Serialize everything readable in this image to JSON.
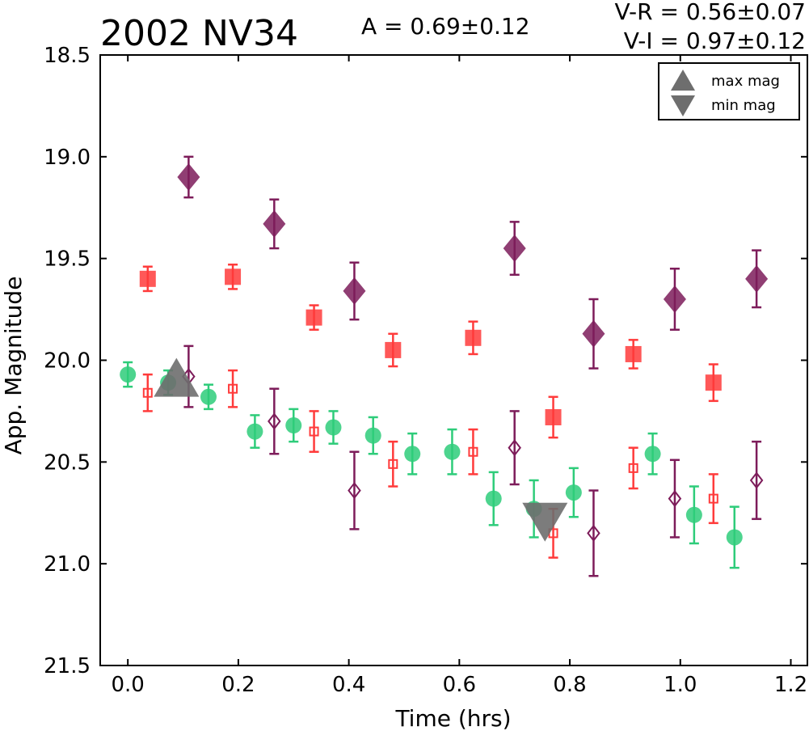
{
  "chart_data": {
    "type": "scatter",
    "title": "2002 NV34",
    "amplitude_label": "A  = 0.69±0.12",
    "color_labels": [
      "V-R = 0.56±0.07",
      "V-I  = 0.97±0.12"
    ],
    "xlabel": "Time (hrs)",
    "ylabel": "App. Magnitude",
    "xlim": [
      -0.05,
      1.23
    ],
    "ylim": [
      21.5,
      18.5
    ],
    "y_inverted": true,
    "xticks": [
      "0.0",
      "0.2",
      "0.4",
      "0.6",
      "0.8",
      "1.0",
      "1.2"
    ],
    "yticks": [
      "18.5",
      "19.0",
      "19.5",
      "20.0",
      "20.5",
      "21.0",
      "21.5"
    ],
    "legend_position": "top-right",
    "legend": [
      {
        "label": "max mag",
        "marker": "triangle-up"
      },
      {
        "label": "min mag",
        "marker": "triangle-down"
      }
    ],
    "colors": {
      "green": "#2ecc7a",
      "red": "#ff3b3b",
      "purple": "#7d1c5a",
      "extremum": "#6e6e6e"
    },
    "series": [
      {
        "marker": "circle-filled",
        "color": "green",
        "points": [
          {
            "x": 0.0,
            "y": 20.07,
            "err": 0.06
          },
          {
            "x": 0.073,
            "y": 20.11,
            "err": 0.06
          },
          {
            "x": 0.146,
            "y": 20.18,
            "err": 0.06
          },
          {
            "x": 0.23,
            "y": 20.35,
            "err": 0.08
          },
          {
            "x": 0.3,
            "y": 20.32,
            "err": 0.08
          },
          {
            "x": 0.372,
            "y": 20.33,
            "err": 0.08
          },
          {
            "x": 0.444,
            "y": 20.37,
            "err": 0.09
          },
          {
            "x": 0.515,
            "y": 20.46,
            "err": 0.1
          },
          {
            "x": 0.587,
            "y": 20.45,
            "err": 0.11
          },
          {
            "x": 0.662,
            "y": 20.68,
            "err": 0.13
          },
          {
            "x": 0.735,
            "y": 20.73,
            "err": 0.14
          },
          {
            "x": 0.807,
            "y": 20.65,
            "err": 0.12
          },
          {
            "x": 0.95,
            "y": 20.46,
            "err": 0.1
          },
          {
            "x": 1.025,
            "y": 20.76,
            "err": 0.14
          },
          {
            "x": 1.098,
            "y": 20.87,
            "err": 0.15
          }
        ]
      },
      {
        "marker": "square-filled",
        "color": "red",
        "points": [
          {
            "x": 0.036,
            "y": 19.6,
            "err": 0.06
          },
          {
            "x": 0.19,
            "y": 19.59,
            "err": 0.06
          },
          {
            "x": 0.337,
            "y": 19.79,
            "err": 0.06
          },
          {
            "x": 0.48,
            "y": 19.95,
            "err": 0.08
          },
          {
            "x": 0.625,
            "y": 19.89,
            "err": 0.08
          },
          {
            "x": 0.77,
            "y": 20.28,
            "err": 0.1
          },
          {
            "x": 0.915,
            "y": 19.97,
            "err": 0.07
          },
          {
            "x": 1.06,
            "y": 20.11,
            "err": 0.09
          }
        ]
      },
      {
        "marker": "square-open",
        "color": "red",
        "points": [
          {
            "x": 0.036,
            "y": 20.16,
            "err": 0.09
          },
          {
            "x": 0.19,
            "y": 20.14,
            "err": 0.09
          },
          {
            "x": 0.337,
            "y": 20.35,
            "err": 0.1
          },
          {
            "x": 0.48,
            "y": 20.51,
            "err": 0.11
          },
          {
            "x": 0.625,
            "y": 20.45,
            "err": 0.11
          },
          {
            "x": 0.77,
            "y": 20.85,
            "err": 0.12
          },
          {
            "x": 0.915,
            "y": 20.53,
            "err": 0.1
          },
          {
            "x": 1.06,
            "y": 20.68,
            "err": 0.12
          }
        ]
      },
      {
        "marker": "diamond-filled",
        "color": "purple",
        "points": [
          {
            "x": 0.11,
            "y": 19.1,
            "err": 0.1
          },
          {
            "x": 0.265,
            "y": 19.33,
            "err": 0.12
          },
          {
            "x": 0.41,
            "y": 19.66,
            "err": 0.14
          },
          {
            "x": 0.7,
            "y": 19.45,
            "err": 0.13
          },
          {
            "x": 0.843,
            "y": 19.87,
            "err": 0.17
          },
          {
            "x": 0.99,
            "y": 19.7,
            "err": 0.15
          },
          {
            "x": 1.138,
            "y": 19.6,
            "err": 0.14
          }
        ]
      },
      {
        "marker": "diamond-open",
        "color": "purple",
        "points": [
          {
            "x": 0.11,
            "y": 20.08,
            "err": 0.15
          },
          {
            "x": 0.265,
            "y": 20.3,
            "err": 0.16
          },
          {
            "x": 0.41,
            "y": 20.64,
            "err": 0.19
          },
          {
            "x": 0.7,
            "y": 20.43,
            "err": 0.18
          },
          {
            "x": 0.843,
            "y": 20.85,
            "err": 0.21
          },
          {
            "x": 0.99,
            "y": 20.68,
            "err": 0.19
          },
          {
            "x": 1.138,
            "y": 20.59,
            "err": 0.19
          }
        ]
      }
    ],
    "extrema": [
      {
        "type": "max",
        "x": 0.088,
        "y": 20.1
      },
      {
        "type": "min",
        "x": 0.755,
        "y": 20.78
      }
    ]
  }
}
